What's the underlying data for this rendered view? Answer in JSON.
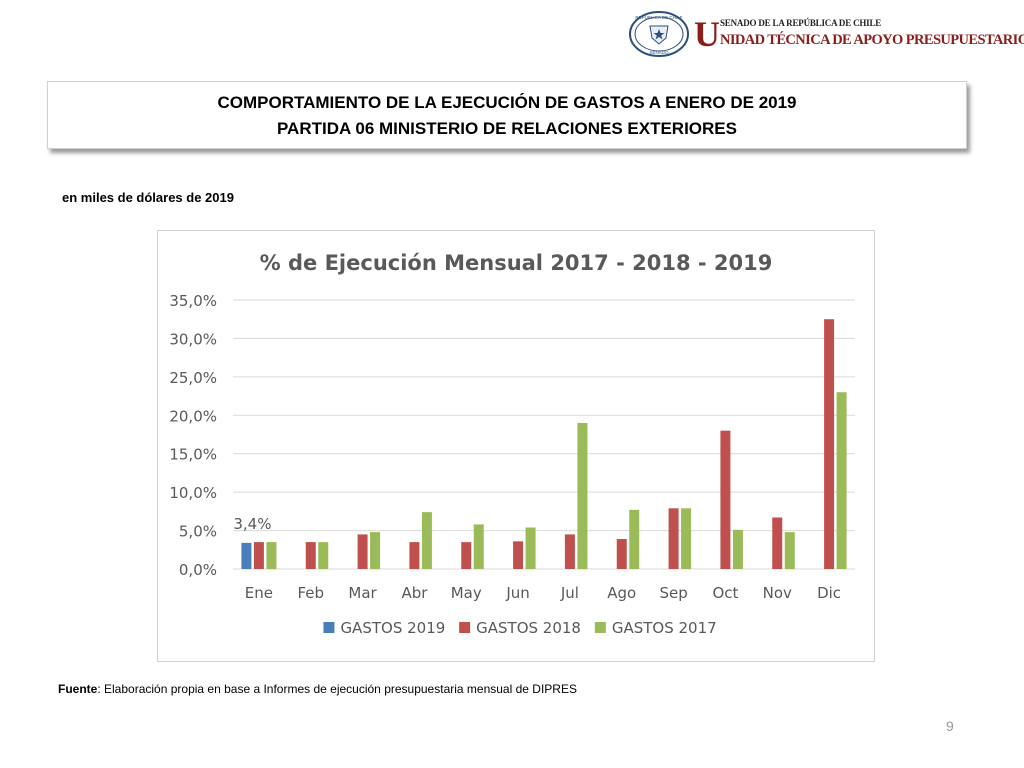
{
  "header": {
    "logo_top": "SENADO DE LA REPÚBLICA DE CHILE",
    "logo_initial": "U",
    "logo_bottom": "NIDAD TÉCNICA DE APOYO PRESUPUESTARIO",
    "seal_top": "REPÚBLICA DE CHILE",
    "seal_bottom": "SENADO"
  },
  "title": {
    "line1": "COMPORTAMIENTO DE LA EJECUCIÓN DE GASTOS A ENERO DE 2019",
    "line2": "PARTIDA 06 MINISTERIO DE RELACIONES EXTERIORES"
  },
  "subtitle": "en miles de dólares de 2019",
  "footer": {
    "source_label": "Fuente",
    "source_text": ": Elaboración propia en base  a Informes de ejecución presupuestaria mensual de DIPRES"
  },
  "page_number": "9",
  "chart_data": {
    "type": "bar",
    "title": "% de Ejecución Mensual 2017 - 2018 - 2019",
    "xlabel": "",
    "ylabel": "",
    "ylim": [
      0,
      35
    ],
    "yticks": [
      "0,0%",
      "5,0%",
      "10,0%",
      "15,0%",
      "20,0%",
      "25,0%",
      "30,0%",
      "35,0%"
    ],
    "grid": true,
    "legend_position": "bottom",
    "categories": [
      "Ene",
      "Feb",
      "Mar",
      "Abr",
      "May",
      "Jun",
      "Jul",
      "Ago",
      "Sep",
      "Oct",
      "Nov",
      "Dic"
    ],
    "series": [
      {
        "name": "GASTOS 2019",
        "color": "#4a7ebb",
        "values": [
          3.4,
          null,
          null,
          null,
          null,
          null,
          null,
          null,
          null,
          null,
          null,
          null
        ]
      },
      {
        "name": "GASTOS 2018",
        "color": "#c0504d",
        "values": [
          3.5,
          3.5,
          4.5,
          3.5,
          3.5,
          3.6,
          4.5,
          3.9,
          7.9,
          18.0,
          6.7,
          32.5
        ]
      },
      {
        "name": "GASTOS 2017",
        "color": "#9bbb59",
        "values": [
          3.5,
          3.5,
          4.8,
          7.4,
          5.8,
          5.4,
          19.0,
          7.7,
          7.9,
          5.1,
          4.8,
          23.0
        ]
      }
    ],
    "annotations": [
      {
        "category": "Ene",
        "series": "GASTOS 2019",
        "text": "3,4%"
      }
    ]
  }
}
